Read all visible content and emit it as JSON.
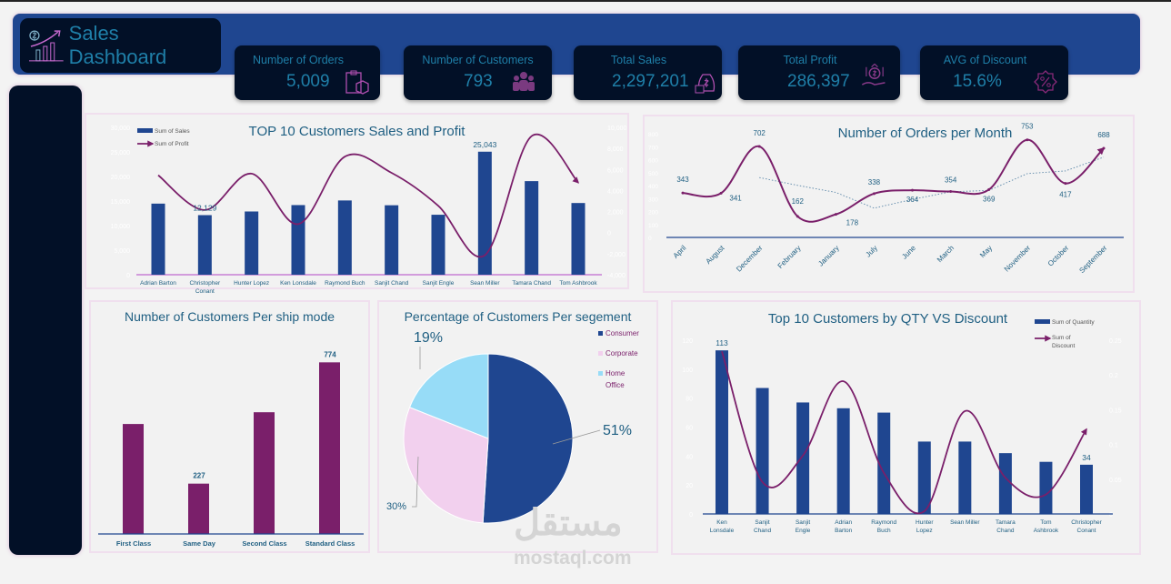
{
  "header": {
    "title": "Sales Dashboard",
    "bg": "#1f4690"
  },
  "kpis": [
    {
      "label": "Number of Orders",
      "value": "5,009",
      "icon": "clipboard-box-icon"
    },
    {
      "label": "Number of Customers",
      "value": "793",
      "icon": "people-group-icon"
    },
    {
      "label": "Total Sales",
      "value": "2,297,201",
      "icon": "money-bag-icon"
    },
    {
      "label": "Total Profit",
      "value": "286,397",
      "icon": "hand-dollar-growth-icon"
    },
    {
      "label": "AVG of Discount",
      "value": "15.6%",
      "icon": "percent-badge-icon"
    }
  ],
  "colors": {
    "navy": "#1f4690",
    "purple": "#7a1f6a",
    "pink": "#f2d0ee",
    "lightblue": "#97dcf7",
    "text": "#1f5f82"
  },
  "watermark": {
    "arabic": "مستقل",
    "latin": "mostaql.com"
  },
  "chart_data": [
    {
      "type": "bar+line",
      "title": "TOP 10 Customers Sales and Profit",
      "categories": [
        "Adrian Barton",
        "Christopher Conant",
        "Hunter Lopez",
        "Ken Lonsdale",
        "Raymond Buch",
        "Sanjit Chand",
        "Sanjit Engle",
        "Sean Miller",
        "Tamara Chand",
        "Tom Ashbrook"
      ],
      "series": [
        {
          "name": "Sum of Sales",
          "type": "bar",
          "axis": "left",
          "values": [
            14474,
            12129,
            12873,
            14175,
            15117,
            14142,
            12209,
            25043,
            19052,
            14596
          ]
        },
        {
          "name": "Sum of Profit",
          "type": "line",
          "axis": "right",
          "values": [
            5450,
            2145,
            5600,
            810,
            7220,
            5680,
            2550,
            -2145,
            9160,
            4750
          ]
        }
      ],
      "data_labels": [
        {
          "index": 1,
          "text": "12,129"
        },
        {
          "index": 7,
          "text": "25,043"
        }
      ],
      "ylim_left": [
        0,
        30000
      ],
      "yticks_left": [
        "0",
        "5,000",
        "10,000",
        "15,000",
        "20,000",
        "25,000",
        "30,000"
      ],
      "ylim_right": [
        -4000,
        10000
      ],
      "yticks_right": [
        "-4,000",
        "-2,000",
        "0",
        "2,000",
        "4,000",
        "6,000",
        "8,000",
        "10,000"
      ],
      "legend": "top-left"
    },
    {
      "type": "line",
      "title": "Number of Orders per Month",
      "categories": [
        "April",
        "August",
        "December",
        "February",
        "January",
        "July",
        "June",
        "March",
        "May",
        "November",
        "October",
        "September"
      ],
      "values": [
        343,
        341,
        702,
        162,
        178,
        338,
        364,
        354,
        369,
        753,
        417,
        688
      ],
      "labels": [
        "343",
        "341",
        "702",
        "162",
        "178",
        "338",
        "364",
        "354",
        "369",
        "753",
        "417",
        "688"
      ],
      "trendline": "3-period moving average",
      "ylim": [
        0,
        800
      ],
      "yticks": [
        "0",
        "100",
        "200",
        "300",
        "400",
        "500",
        "600",
        "700",
        "800"
      ]
    },
    {
      "type": "bar",
      "title": "Number of Customers Per ship mode",
      "categories": [
        "First Class",
        "Same Day",
        "Second Class",
        "Standard Class"
      ],
      "values": [
        496,
        227,
        549,
        774
      ],
      "data_labels": [
        {
          "index": 1,
          "text": "227"
        },
        {
          "index": 3,
          "text": "774"
        }
      ],
      "ylim": [
        0,
        800
      ]
    },
    {
      "type": "pie",
      "title": "Percentage of Customers Per segement",
      "slices": [
        {
          "name": "Consumer",
          "value": 51,
          "label": "51%"
        },
        {
          "name": "Corporate",
          "value": 30,
          "label": "30%"
        },
        {
          "name": "Home Office",
          "value": 19,
          "label": "19%"
        }
      ],
      "legend": "right"
    },
    {
      "type": "bar+line",
      "title": "Top 10 Customers by QTY VS Discount",
      "categories": [
        "Ken Lonsdale",
        "Sanjit Chand",
        "Sanjit Engle",
        "Adrian Barton",
        "Raymond Buch",
        "Hunter Lopez",
        "Sean Miller",
        "Tamara Chand",
        "Tom Ashbrook",
        "Christopher Conant"
      ],
      "series": [
        {
          "name": "Sum of Quantity",
          "type": "bar",
          "axis": "left",
          "values": [
            113,
            87,
            77,
            73,
            70,
            50,
            50,
            42,
            36,
            34
          ]
        },
        {
          "name": "Sum of Discount",
          "type": "line",
          "axis": "right",
          "values": [
            0.234,
            0.046,
            0.084,
            0.191,
            0.059,
            0.004,
            0.148,
            0.052,
            0.028,
            0.122
          ]
        }
      ],
      "data_labels": [
        {
          "index": 0,
          "text": "113"
        },
        {
          "index": 9,
          "text": "34"
        }
      ],
      "ylim_left": [
        0,
        120
      ],
      "yticks_left": [
        "0",
        "20",
        "40",
        "60",
        "80",
        "100",
        "120"
      ],
      "ylim_right": [
        0,
        0.25
      ],
      "yticks_right": [
        "0",
        "0.05",
        "0.1",
        "0.15",
        "0.2",
        "0.25"
      ],
      "legend": "top-right"
    }
  ]
}
